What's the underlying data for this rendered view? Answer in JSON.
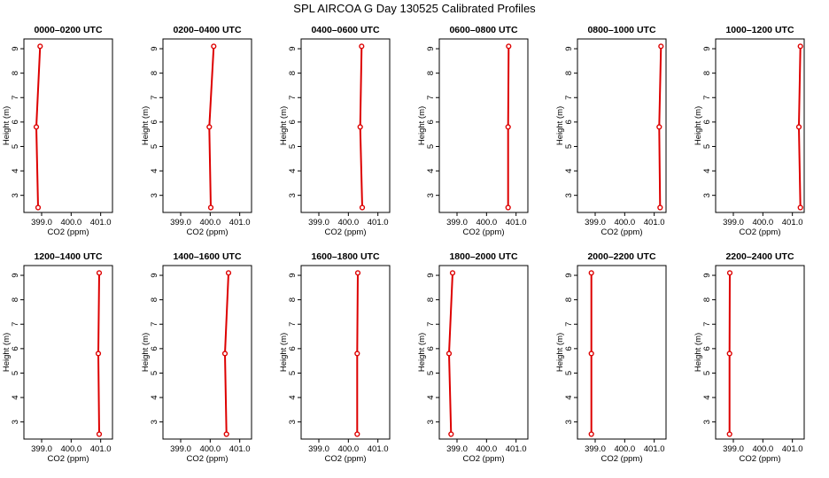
{
  "figure": {
    "title": "SPL AIRCOA G  Day 130525  Calibrated Profiles",
    "color": "#dd0000"
  },
  "chart_data": [
    {
      "type": "line",
      "title": "0000–0200 UTC",
      "xlabel": "CO2 (ppm)",
      "ylabel": "Height (m)",
      "xlim": [
        398.4,
        401.4
      ],
      "ylim": [
        2.3,
        9.4
      ],
      "xticks": [
        "399.0",
        "400.0",
        "401.0"
      ],
      "yticks": [
        "3",
        "4",
        "5",
        "6",
        "7",
        "8",
        "9"
      ],
      "series": [
        {
          "x": [
            398.88,
            398.82,
            398.95
          ],
          "y": [
            2.5,
            5.8,
            9.1
          ]
        }
      ]
    },
    {
      "type": "line",
      "title": "0200–0400 UTC",
      "xlabel": "CO2 (ppm)",
      "ylabel": "Height (m)",
      "xlim": [
        398.4,
        401.4
      ],
      "ylim": [
        2.3,
        9.4
      ],
      "xticks": [
        "399.0",
        "400.0",
        "401.0"
      ],
      "yticks": [
        "3",
        "4",
        "5",
        "6",
        "7",
        "8",
        "9"
      ],
      "series": [
        {
          "x": [
            400.02,
            399.97,
            400.12
          ],
          "y": [
            2.5,
            5.8,
            9.1
          ]
        }
      ]
    },
    {
      "type": "line",
      "title": "0400–0600 UTC",
      "xlabel": "CO2 (ppm)",
      "ylabel": "Height (m)",
      "xlim": [
        398.4,
        401.4
      ],
      "ylim": [
        2.3,
        9.4
      ],
      "xticks": [
        "399.0",
        "400.0",
        "401.0"
      ],
      "yticks": [
        "3",
        "4",
        "5",
        "6",
        "7",
        "8",
        "9"
      ],
      "series": [
        {
          "x": [
            400.47,
            400.4,
            400.45
          ],
          "y": [
            2.5,
            5.8,
            9.1
          ]
        }
      ]
    },
    {
      "type": "line",
      "title": "0600–0800 UTC",
      "xlabel": "CO2 (ppm)",
      "ylabel": "Height (m)",
      "xlim": [
        398.4,
        401.4
      ],
      "ylim": [
        2.3,
        9.4
      ],
      "xticks": [
        "399.0",
        "400.0",
        "401.0"
      ],
      "yticks": [
        "3",
        "4",
        "5",
        "6",
        "7",
        "8",
        "9"
      ],
      "series": [
        {
          "x": [
            400.73,
            400.73,
            400.75
          ],
          "y": [
            2.5,
            5.8,
            9.1
          ]
        }
      ]
    },
    {
      "type": "line",
      "title": "0800–1000 UTC",
      "xlabel": "CO2 (ppm)",
      "ylabel": "Height (m)",
      "xlim": [
        398.4,
        401.4
      ],
      "ylim": [
        2.3,
        9.4
      ],
      "xticks": [
        "399.0",
        "400.0",
        "401.0"
      ],
      "yticks": [
        "3",
        "4",
        "5",
        "6",
        "7",
        "8",
        "9"
      ],
      "series": [
        {
          "x": [
            401.2,
            401.17,
            401.23
          ],
          "y": [
            2.5,
            5.8,
            9.1
          ]
        }
      ]
    },
    {
      "type": "line",
      "title": "1000–1200 UTC",
      "xlabel": "CO2 (ppm)",
      "ylabel": "Height (m)",
      "xlim": [
        398.4,
        401.4
      ],
      "ylim": [
        2.3,
        9.4
      ],
      "xticks": [
        "399.0",
        "400.0",
        "401.0"
      ],
      "yticks": [
        "3",
        "4",
        "5",
        "6",
        "7",
        "8",
        "9"
      ],
      "series": [
        {
          "x": [
            401.27,
            401.22,
            401.27
          ],
          "y": [
            2.5,
            5.8,
            9.1
          ]
        }
      ]
    },
    {
      "type": "line",
      "title": "1200–1400 UTC",
      "xlabel": "CO2 (ppm)",
      "ylabel": "Height (m)",
      "xlim": [
        398.4,
        401.4
      ],
      "ylim": [
        2.3,
        9.4
      ],
      "xticks": [
        "399.0",
        "400.0",
        "401.0"
      ],
      "yticks": [
        "3",
        "4",
        "5",
        "6",
        "7",
        "8",
        "9"
      ],
      "series": [
        {
          "x": [
            400.95,
            400.92,
            400.95
          ],
          "y": [
            2.5,
            5.8,
            9.1
          ]
        }
      ]
    },
    {
      "type": "line",
      "title": "1400–1600 UTC",
      "xlabel": "CO2 (ppm)",
      "ylabel": "Height (m)",
      "xlim": [
        398.4,
        401.4
      ],
      "ylim": [
        2.3,
        9.4
      ],
      "xticks": [
        "399.0",
        "400.0",
        "401.0"
      ],
      "yticks": [
        "3",
        "4",
        "5",
        "6",
        "7",
        "8",
        "9"
      ],
      "series": [
        {
          "x": [
            400.55,
            400.5,
            400.62
          ],
          "y": [
            2.5,
            5.8,
            9.1
          ]
        }
      ]
    },
    {
      "type": "line",
      "title": "1600–1800 UTC",
      "xlabel": "CO2 (ppm)",
      "ylabel": "Height (m)",
      "xlim": [
        398.4,
        401.4
      ],
      "ylim": [
        2.3,
        9.4
      ],
      "xticks": [
        "399.0",
        "400.0",
        "401.0"
      ],
      "yticks": [
        "3",
        "4",
        "5",
        "6",
        "7",
        "8",
        "9"
      ],
      "series": [
        {
          "x": [
            400.3,
            400.3,
            400.32
          ],
          "y": [
            2.5,
            5.8,
            9.1
          ]
        }
      ]
    },
    {
      "type": "line",
      "title": "1800–2000 UTC",
      "xlabel": "CO2 (ppm)",
      "ylabel": "Height (m)",
      "xlim": [
        398.4,
        401.4
      ],
      "ylim": [
        2.3,
        9.4
      ],
      "xticks": [
        "399.0",
        "400.0",
        "401.0"
      ],
      "yticks": [
        "3",
        "4",
        "5",
        "6",
        "7",
        "8",
        "9"
      ],
      "series": [
        {
          "x": [
            398.8,
            398.73,
            398.85
          ],
          "y": [
            2.5,
            5.8,
            9.1
          ]
        }
      ]
    },
    {
      "type": "line",
      "title": "2000–2200 UTC",
      "xlabel": "CO2 (ppm)",
      "ylabel": "Height (m)",
      "xlim": [
        398.4,
        401.4
      ],
      "ylim": [
        2.3,
        9.4
      ],
      "xticks": [
        "399.0",
        "400.0",
        "401.0"
      ],
      "yticks": [
        "3",
        "4",
        "5",
        "6",
        "7",
        "8",
        "9"
      ],
      "series": [
        {
          "x": [
            398.87,
            398.87,
            398.87
          ],
          "y": [
            2.5,
            5.8,
            9.1
          ]
        }
      ]
    },
    {
      "type": "line",
      "title": "2200–2400 UTC",
      "xlabel": "CO2 (ppm)",
      "ylabel": "Height (m)",
      "xlim": [
        398.4,
        401.4
      ],
      "ylim": [
        2.3,
        9.4
      ],
      "xticks": [
        "399.0",
        "400.0",
        "401.0"
      ],
      "yticks": [
        "3",
        "4",
        "5",
        "6",
        "7",
        "8",
        "9"
      ],
      "series": [
        {
          "x": [
            398.87,
            398.87,
            398.88
          ],
          "y": [
            2.5,
            5.8,
            9.1
          ]
        }
      ]
    }
  ]
}
